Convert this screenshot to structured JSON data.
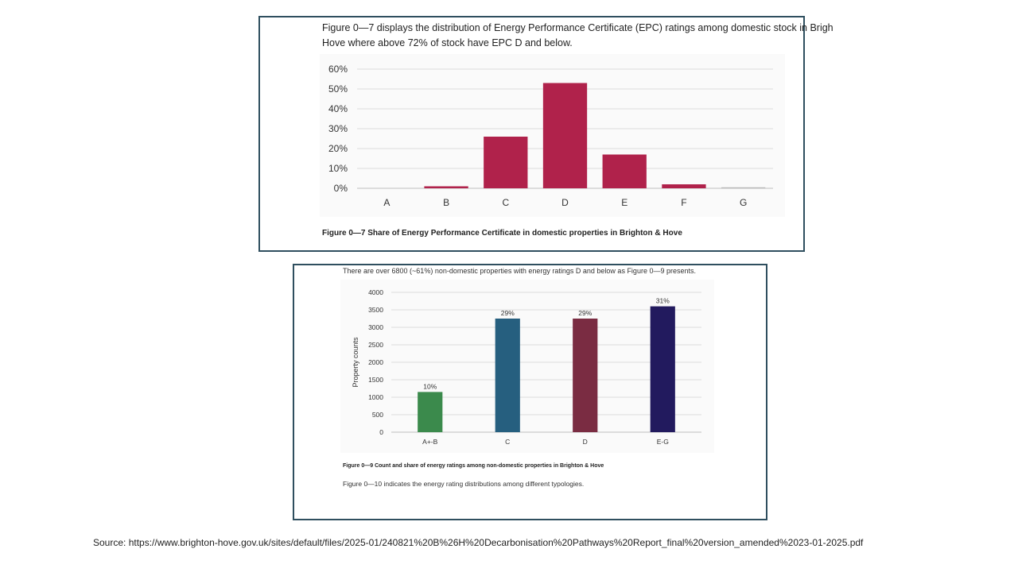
{
  "panel1": {
    "intro_line1": "Figure 0—7 displays the distribution of Energy Performance Certificate (EPC) ratings among domestic stock in Brigh",
    "intro_line2": "Hove where above 72% of stock have EPC D and below.",
    "caption": "Figure 0—7 Share of Energy Performance Certificate in domestic properties in Brighton & Hove"
  },
  "panel2": {
    "intro": "There are over 6800 (~61%) non-domestic properties with energy ratings D and below as Figure 0—9 presents.",
    "caption": "Figure 0—9 Count and share of energy ratings among non-domestic properties in Brighton & Hove",
    "note": "Figure 0—10 indicates the energy rating distributions among different typologies."
  },
  "source": "Source: https://www.brighton-hove.gov.uk/sites/default/files/2025-01/240821%20B%26H%20Decarbonisation%20Pathways%20Report_final%20version_amended%2023-01-2025.pdf",
  "chart_data": [
    {
      "type": "bar",
      "title": "Figure 0—7 Share of Energy Performance Certificate in domestic properties in Brighton & Hove",
      "categories": [
        "A",
        "B",
        "C",
        "D",
        "E",
        "F",
        "G"
      ],
      "values": [
        0,
        1,
        26,
        53,
        17,
        2,
        0.5
      ],
      "ylim": [
        0,
        60
      ],
      "yticks": [
        0,
        10,
        20,
        30,
        40,
        50,
        60
      ],
      "ytick_labels": [
        "0%",
        "10%",
        "20%",
        "30%",
        "40%",
        "50%",
        "60%"
      ],
      "xlabel": "",
      "ylabel": "",
      "grid": true,
      "colors": [
        "#b0224b",
        "#b0224b",
        "#b0224b",
        "#b0224b",
        "#b0224b",
        "#b0224b",
        "#b9b9b9"
      ]
    },
    {
      "type": "bar",
      "title": "Figure 0—9 Count and share of energy ratings among non-domestic properties in Brighton & Hove",
      "categories": [
        "A+-B",
        "C",
        "D",
        "E-G"
      ],
      "values": [
        1150,
        3250,
        3250,
        3600
      ],
      "data_labels": [
        "10%",
        "29%",
        "29%",
        "31%"
      ],
      "ylim": [
        0,
        4000
      ],
      "yticks": [
        0,
        500,
        1000,
        1500,
        2000,
        2500,
        3000,
        3500,
        4000
      ],
      "ytick_labels": [
        "0",
        "500",
        "1000",
        "1500",
        "2000",
        "2500",
        "3000",
        "3500",
        "4000"
      ],
      "xlabel": "",
      "ylabel": "Property counts",
      "grid": true,
      "colors": [
        "#3b8a4c",
        "#265f7f",
        "#7a2c42",
        "#221a5e"
      ]
    }
  ]
}
